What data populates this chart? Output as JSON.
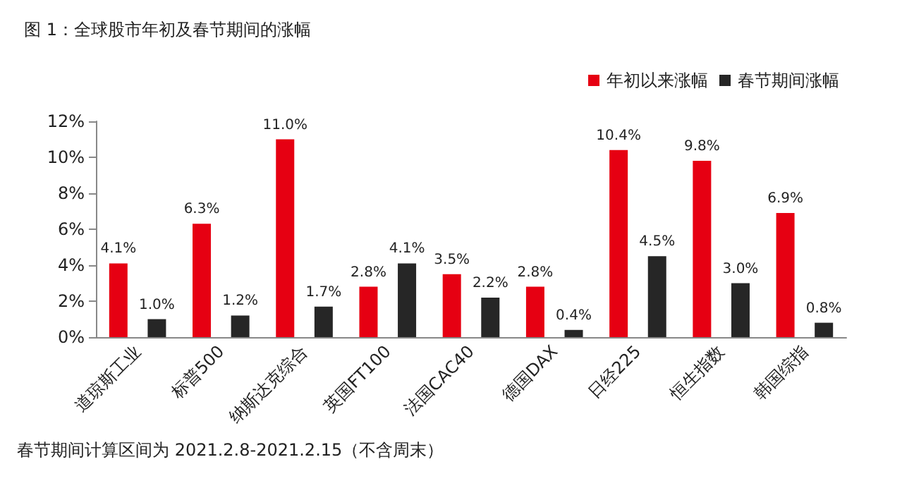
{
  "chart_data": {
    "type": "bar",
    "title": "图 1：全球股市年初及春节期间的涨幅",
    "categories": [
      "道琼斯工业",
      "标普500",
      "纳斯达克综合",
      "英国FT100",
      "法国CAC40",
      "德国DAX",
      "日经225",
      "恒生指数",
      "韩国综指"
    ],
    "series": [
      {
        "name": "年初以来涨幅",
        "color": "#e60012",
        "values": [
          4.1,
          6.3,
          11.0,
          2.8,
          3.5,
          2.8,
          10.4,
          9.8,
          6.9
        ],
        "value_labels": [
          "4.1%",
          "6.3%",
          "11.0%",
          "2.8%",
          "3.5%",
          "2.8%",
          "10.4%",
          "9.8%",
          "6.9%"
        ]
      },
      {
        "name": "春节期间涨幅",
        "color": "#262626",
        "values": [
          1.0,
          1.2,
          1.7,
          4.1,
          2.2,
          0.4,
          4.5,
          3.0,
          0.8
        ],
        "value_labels": [
          "1.0%",
          "1.2%",
          "1.7%",
          "4.1%",
          "2.2%",
          "0.4%",
          "4.5%",
          "3.0%",
          "0.8%"
        ]
      }
    ],
    "ylim": [
      0,
      12
    ],
    "yticks": [
      {
        "value": 0,
        "label": "0%"
      },
      {
        "value": 2,
        "label": "2%"
      },
      {
        "value": 4,
        "label": "4%"
      },
      {
        "value": 6,
        "label": "6%"
      },
      {
        "value": 8,
        "label": "8%"
      },
      {
        "value": 10,
        "label": "10%"
      },
      {
        "value": 12,
        "label": "12%"
      }
    ],
    "grid": false,
    "legend": "top right",
    "annotations": [
      "春节期间计算区间为 2021.2.8-2021.2.15（不含周末）"
    ]
  }
}
